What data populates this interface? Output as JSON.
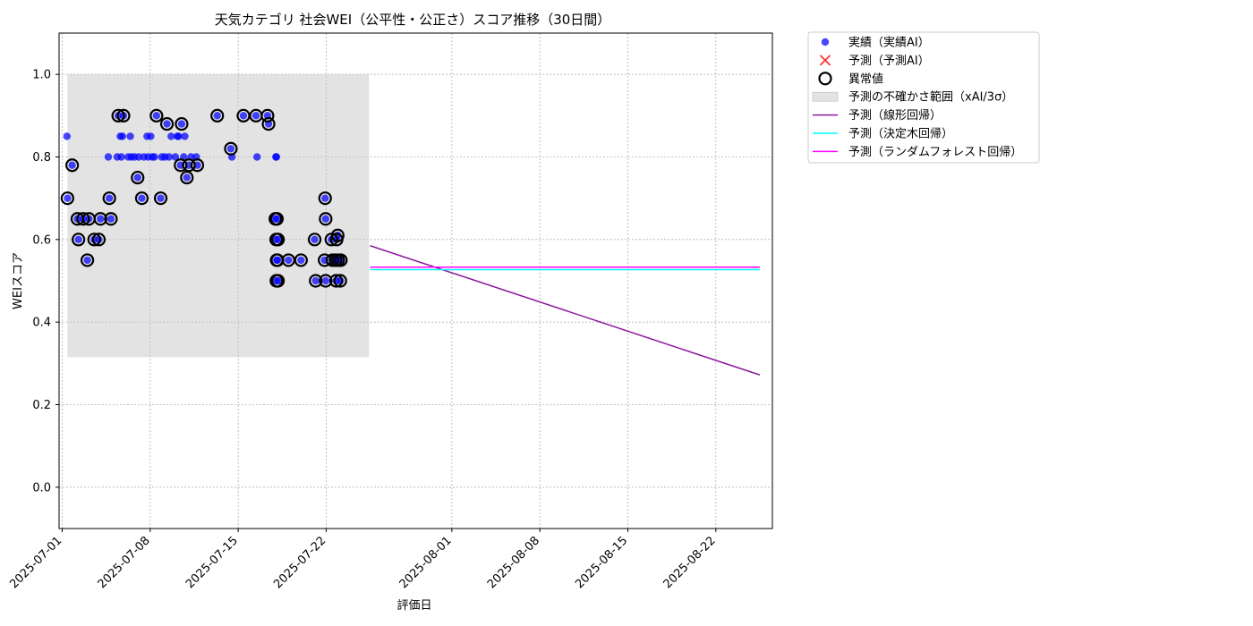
{
  "chart_data": {
    "type": "scatter",
    "title": "天気カテゴリ 社会WEI（公平性・公正さ）スコア推移（30日間）",
    "xlabel": "評価日",
    "ylabel": "WEIスコア",
    "xlim": [
      "2025-06-30T18:00",
      "2025-08-26T12:00"
    ],
    "ylim": [
      -0.1,
      1.1
    ],
    "y_ticks": [
      0.0,
      0.2,
      0.4,
      0.6,
      0.8,
      1.0
    ],
    "y_tick_labels": [
      "0.0",
      "0.2",
      "0.4",
      "0.6",
      "0.8",
      "1.0"
    ],
    "x_ticks": [
      "2025-07-01",
      "2025-07-08",
      "2025-07-15",
      "2025-07-22",
      "2025-08-01",
      "2025-08-08",
      "2025-08-15",
      "2025-08-22"
    ],
    "x_tick_labels": [
      "2025-07-01",
      "2025-07-08",
      "2025-07-15",
      "2025-07-22",
      "2025-08-01",
      "2025-08-08",
      "2025-08-15",
      "2025-08-22"
    ],
    "grid": true,
    "legend_position": "outside-right-top",
    "legend": [
      {
        "label": "実績（実績AI）",
        "kind": "dot",
        "color": "#0000ff"
      },
      {
        "label": "予測（予測AI）",
        "kind": "cross",
        "color": "#ff0000"
      },
      {
        "label": "異常値",
        "kind": "ring",
        "color": "#000000"
      },
      {
        "label": "予測の不確かさ範囲（xAI/3σ）",
        "kind": "band",
        "color": "#cccccc"
      },
      {
        "label": "予測（線形回帰）",
        "kind": "line",
        "color": "#8b1a9b"
      },
      {
        "label": "予測（決定木回帰）",
        "kind": "line",
        "color": "#00ffff"
      },
      {
        "label": "予測（ランダムフォレスト回帰）",
        "kind": "line",
        "color": "#ff00ff"
      }
    ],
    "uncertainty_band": {
      "x_start": "2025-07-01T10:00",
      "x_end": "2025-07-25T10:00",
      "y_low": 0.315,
      "y_high": 1.0
    },
    "actual": {
      "name": "実績（実績AI）",
      "color": "#0000ff",
      "points": [
        [
          "2025-07-01T09:00",
          0.85
        ],
        [
          "2025-07-01T10:00",
          0.7
        ],
        [
          "2025-07-01T19:00",
          0.78
        ],
        [
          "2025-07-02T05:00",
          0.65
        ],
        [
          "2025-07-02T07:00",
          0.6
        ],
        [
          "2025-07-02T16:00",
          0.65
        ],
        [
          "2025-07-03T00:00",
          0.55
        ],
        [
          "2025-07-03T03:00",
          0.65
        ],
        [
          "2025-07-03T13:00",
          0.6
        ],
        [
          "2025-07-03T22:00",
          0.6
        ],
        [
          "2025-07-04T01:00",
          0.65
        ],
        [
          "2025-07-04T16:00",
          0.8
        ],
        [
          "2025-07-04T18:00",
          0.7
        ],
        [
          "2025-07-04T21:00",
          0.65
        ],
        [
          "2025-07-05T09:00",
          0.8
        ],
        [
          "2025-07-05T11:00",
          0.9
        ],
        [
          "2025-07-05T15:00",
          0.85
        ],
        [
          "2025-07-05T17:00",
          0.8
        ],
        [
          "2025-07-05T19:00",
          0.85
        ],
        [
          "2025-07-05T21:00",
          0.9
        ],
        [
          "2025-07-06T06:00",
          0.8
        ],
        [
          "2025-07-06T10:00",
          0.85
        ],
        [
          "2025-07-06T12:00",
          0.8
        ],
        [
          "2025-07-06T18:00",
          0.8
        ],
        [
          "2025-07-07T00:00",
          0.75
        ],
        [
          "2025-07-07T02:00",
          0.8
        ],
        [
          "2025-07-07T08:00",
          0.7
        ],
        [
          "2025-07-07T12:00",
          0.8
        ],
        [
          "2025-07-07T18:00",
          0.85
        ],
        [
          "2025-07-07T20:00",
          0.8
        ],
        [
          "2025-07-08T01:00",
          0.85
        ],
        [
          "2025-07-08T04:00",
          0.8
        ],
        [
          "2025-07-08T08:00",
          0.8
        ],
        [
          "2025-07-08T12:00",
          0.9
        ],
        [
          "2025-07-08T20:00",
          0.7
        ],
        [
          "2025-07-08T22:00",
          0.8
        ],
        [
          "2025-07-09T04:00",
          0.8
        ],
        [
          "2025-07-09T08:00",
          0.88
        ],
        [
          "2025-07-09T12:00",
          0.8
        ],
        [
          "2025-07-09T16:00",
          0.85
        ],
        [
          "2025-07-10T00:00",
          0.8
        ],
        [
          "2025-07-10T04:00",
          0.85
        ],
        [
          "2025-07-10T06:00",
          0.85
        ],
        [
          "2025-07-10T10:00",
          0.78
        ],
        [
          "2025-07-10T12:00",
          0.88
        ],
        [
          "2025-07-10T16:00",
          0.8
        ],
        [
          "2025-07-10T18:00",
          0.85
        ],
        [
          "2025-07-10T22:00",
          0.75
        ],
        [
          "2025-07-11T02:00",
          0.78
        ],
        [
          "2025-07-11T06:00",
          0.8
        ],
        [
          "2025-07-11T16:00",
          0.8
        ],
        [
          "2025-07-11T18:00",
          0.78
        ],
        [
          "2025-07-13T08:00",
          0.9
        ],
        [
          "2025-07-14T10:00",
          0.82
        ],
        [
          "2025-07-14T12:00",
          0.8
        ],
        [
          "2025-07-15T10:00",
          0.9
        ],
        [
          "2025-07-16T10:00",
          0.9
        ],
        [
          "2025-07-16T12:00",
          0.8
        ],
        [
          "2025-07-17T08:00",
          0.9
        ],
        [
          "2025-07-17T10:00",
          0.88
        ],
        [
          "2025-07-18T00:00",
          0.8
        ],
        [
          "2025-07-18T01:00",
          0.8
        ],
        [
          "2025-07-17T23:00",
          0.65
        ],
        [
          "2025-07-18T02:00",
          0.65
        ],
        [
          "2025-07-18T00:30",
          0.6
        ],
        [
          "2025-07-18T04:00",
          0.6
        ],
        [
          "2025-07-18T01:30",
          0.55
        ],
        [
          "2025-07-18T03:00",
          0.55
        ],
        [
          "2025-07-18T01:00",
          0.5
        ],
        [
          "2025-07-18T04:00",
          0.5
        ],
        [
          "2025-07-19T00:00",
          0.55
        ],
        [
          "2025-07-20T00:00",
          0.55
        ],
        [
          "2025-07-21T02:00",
          0.6
        ],
        [
          "2025-07-21T04:00",
          0.5
        ],
        [
          "2025-07-21T22:00",
          0.7
        ],
        [
          "2025-07-21T23:00",
          0.65
        ],
        [
          "2025-07-21T21:00",
          0.55
        ],
        [
          "2025-07-21T23:00",
          0.5
        ],
        [
          "2025-07-22T10:00",
          0.6
        ],
        [
          "2025-07-22T12:00",
          0.55
        ],
        [
          "2025-07-22T18:00",
          0.55
        ],
        [
          "2025-07-22T19:00",
          0.5
        ],
        [
          "2025-07-22T22:00",
          0.61
        ],
        [
          "2025-07-22T20:00",
          0.6
        ],
        [
          "2025-07-22T23:00",
          0.55
        ],
        [
          "2025-07-23T03:00",
          0.5
        ],
        [
          "2025-07-23T04:00",
          0.55
        ]
      ]
    },
    "anomalies": [
      [
        "2025-07-01T10:00",
        0.7
      ],
      [
        "2025-07-01T19:00",
        0.78
      ],
      [
        "2025-07-02T05:00",
        0.65
      ],
      [
        "2025-07-02T07:00",
        0.6
      ],
      [
        "2025-07-02T16:00",
        0.65
      ],
      [
        "2025-07-03T00:00",
        0.55
      ],
      [
        "2025-07-03T03:00",
        0.65
      ],
      [
        "2025-07-03T13:00",
        0.6
      ],
      [
        "2025-07-03T22:00",
        0.6
      ],
      [
        "2025-07-04T01:00",
        0.65
      ],
      [
        "2025-07-04T18:00",
        0.7
      ],
      [
        "2025-07-04T21:00",
        0.65
      ],
      [
        "2025-07-05T11:00",
        0.9
      ],
      [
        "2025-07-05T21:00",
        0.9
      ],
      [
        "2025-07-07T00:00",
        0.75
      ],
      [
        "2025-07-07T08:00",
        0.7
      ],
      [
        "2025-07-08T12:00",
        0.9
      ],
      [
        "2025-07-08T20:00",
        0.7
      ],
      [
        "2025-07-09T08:00",
        0.88
      ],
      [
        "2025-07-10T10:00",
        0.78
      ],
      [
        "2025-07-10T12:00",
        0.88
      ],
      [
        "2025-07-10T22:00",
        0.75
      ],
      [
        "2025-07-11T02:00",
        0.78
      ],
      [
        "2025-07-11T18:00",
        0.78
      ],
      [
        "2025-07-13T08:00",
        0.9
      ],
      [
        "2025-07-14T10:00",
        0.82
      ],
      [
        "2025-07-15T10:00",
        0.9
      ],
      [
        "2025-07-16T10:00",
        0.9
      ],
      [
        "2025-07-17T08:00",
        0.9
      ],
      [
        "2025-07-17T10:00",
        0.88
      ],
      [
        "2025-07-17T23:00",
        0.65
      ],
      [
        "2025-07-18T02:00",
        0.65
      ],
      [
        "2025-07-18T00:30",
        0.6
      ],
      [
        "2025-07-18T04:00",
        0.6
      ],
      [
        "2025-07-18T01:30",
        0.55
      ],
      [
        "2025-07-18T03:00",
        0.55
      ],
      [
        "2025-07-18T01:00",
        0.5
      ],
      [
        "2025-07-18T04:00",
        0.5
      ],
      [
        "2025-07-19T00:00",
        0.55
      ],
      [
        "2025-07-20T00:00",
        0.55
      ],
      [
        "2025-07-21T02:00",
        0.6
      ],
      [
        "2025-07-21T04:00",
        0.5
      ],
      [
        "2025-07-21T22:00",
        0.7
      ],
      [
        "2025-07-21T23:00",
        0.65
      ],
      [
        "2025-07-21T21:00",
        0.55
      ],
      [
        "2025-07-21T23:00",
        0.5
      ],
      [
        "2025-07-22T10:00",
        0.6
      ],
      [
        "2025-07-22T12:00",
        0.55
      ],
      [
        "2025-07-22T18:00",
        0.55
      ],
      [
        "2025-07-22T19:00",
        0.5
      ],
      [
        "2025-07-22T22:00",
        0.61
      ],
      [
        "2025-07-22T20:00",
        0.6
      ],
      [
        "2025-07-22T23:00",
        0.55
      ],
      [
        "2025-07-23T03:00",
        0.5
      ],
      [
        "2025-07-23T04:00",
        0.55
      ]
    ],
    "prediction_lines": [
      {
        "name": "予測（線形回帰）",
        "color": "#8b1a9b",
        "points": [
          [
            "2025-07-25T12:00",
            0.585
          ],
          [
            "2025-08-25T12:00",
            0.272
          ]
        ]
      },
      {
        "name": "予測（決定木回帰）",
        "color": "#00ffff",
        "points": [
          [
            "2025-07-25T12:00",
            0.527
          ],
          [
            "2025-08-25T12:00",
            0.527
          ]
        ]
      },
      {
        "name": "予測（ランダムフォレスト回帰）",
        "color": "#ff00ff",
        "points": [
          [
            "2025-07-25T12:00",
            0.533
          ],
          [
            "2025-08-25T12:00",
            0.533
          ]
        ]
      }
    ]
  }
}
